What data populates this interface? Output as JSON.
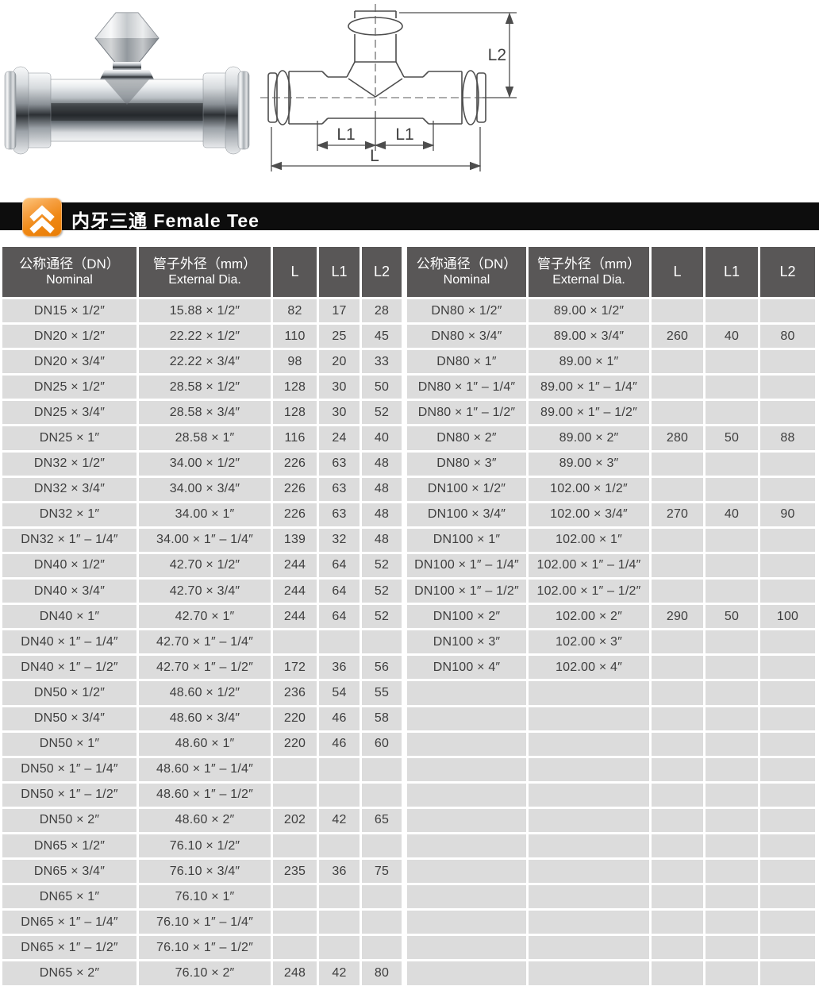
{
  "section": {
    "title": "内牙三通 Female Tee",
    "title_zh": "内牙三通",
    "title_en": "Female Tee"
  },
  "diagram": {
    "dim_l": "L",
    "dim_l1_left": "L1",
    "dim_l1_right": "L1",
    "dim_l2": "L2"
  },
  "table": {
    "headers": {
      "nominal_zh": "公称通径（DN）",
      "nominal_en": "Nominal",
      "dia_zh": "管子外径（mm）",
      "dia_en": "External Dia.",
      "l": "L",
      "l1": "L1",
      "l2": "L2"
    },
    "left_rows": [
      [
        "DN15 × 1/2″",
        "15.88 × 1/2″",
        "82",
        "17",
        "28"
      ],
      [
        "DN20 × 1/2″",
        "22.22 × 1/2″",
        "110",
        "25",
        "45"
      ],
      [
        "DN20 × 3/4″",
        "22.22 × 3/4″",
        "98",
        "20",
        "33"
      ],
      [
        "DN25 × 1/2″",
        "28.58 × 1/2″",
        "128",
        "30",
        "50"
      ],
      [
        "DN25 × 3/4″",
        "28.58 × 3/4″",
        "128",
        "30",
        "52"
      ],
      [
        "DN25 × 1″",
        "28.58 × 1″",
        "116",
        "24",
        "40"
      ],
      [
        "DN32 × 1/2″",
        "34.00 × 1/2″",
        "226",
        "63",
        "48"
      ],
      [
        "DN32 × 3/4″",
        "34.00 × 3/4″",
        "226",
        "63",
        "48"
      ],
      [
        "DN32 × 1″",
        "34.00 × 1″",
        "226",
        "63",
        "48"
      ],
      [
        "DN32 × 1″ – 1/4″",
        "34.00 × 1″ – 1/4″",
        "139",
        "32",
        "48"
      ],
      [
        "DN40 × 1/2″",
        "42.70 × 1/2″",
        "244",
        "64",
        "52"
      ],
      [
        "DN40 × 3/4″",
        "42.70 × 3/4″",
        "244",
        "64",
        "52"
      ],
      [
        "DN40 × 1″",
        "42.70 × 1″",
        "244",
        "64",
        "52"
      ],
      [
        "DN40 × 1″ – 1/4″",
        "42.70 × 1″ – 1/4″",
        "",
        "",
        ""
      ],
      [
        "DN40 × 1″ – 1/2″",
        "42.70 × 1″ – 1/2″",
        "172",
        "36",
        "56"
      ],
      [
        "DN50 × 1/2″",
        "48.60 × 1/2″",
        "236",
        "54",
        "55"
      ],
      [
        "DN50 × 3/4″",
        "48.60 × 3/4″",
        "220",
        "46",
        "58"
      ],
      [
        "DN50 × 1″",
        "48.60 × 1″",
        "220",
        "46",
        "60"
      ],
      [
        "DN50 × 1″ – 1/4″",
        "48.60 × 1″ – 1/4″",
        "",
        "",
        ""
      ],
      [
        "DN50 × 1″ – 1/2″",
        "48.60 × 1″ – 1/2″",
        "",
        "",
        ""
      ],
      [
        "DN50 × 2″",
        "48.60 × 2″",
        "202",
        "42",
        "65"
      ],
      [
        "DN65 × 1/2″",
        "76.10 × 1/2″",
        "",
        "",
        ""
      ],
      [
        "DN65 × 3/4″",
        "76.10 × 3/4″",
        "235",
        "36",
        "75"
      ],
      [
        "DN65 × 1″",
        "76.10 × 1″",
        "",
        "",
        ""
      ],
      [
        "DN65 × 1″ – 1/4″",
        "76.10 × 1″ – 1/4″",
        "",
        "",
        ""
      ],
      [
        "DN65 × 1″ – 1/2″",
        "76.10 × 1″ – 1/2″",
        "",
        "",
        ""
      ],
      [
        "DN65 × 2″",
        "76.10 × 2″",
        "248",
        "42",
        "80"
      ]
    ],
    "right_rows": [
      [
        "DN80 × 1/2″",
        "89.00 × 1/2″",
        "",
        "",
        ""
      ],
      [
        "DN80 × 3/4″",
        "89.00 × 3/4″",
        "260",
        "40",
        "80"
      ],
      [
        "DN80 × 1″",
        "89.00 × 1″",
        "",
        "",
        ""
      ],
      [
        "DN80 × 1″ – 1/4″",
        "89.00 × 1″ – 1/4″",
        "",
        "",
        ""
      ],
      [
        "DN80 × 1″ – 1/2″",
        "89.00 × 1″ – 1/2″",
        "",
        "",
        ""
      ],
      [
        "DN80 × 2″",
        "89.00 × 2″",
        "280",
        "50",
        "88"
      ],
      [
        "DN80 × 3″",
        "89.00 × 3″",
        "",
        "",
        ""
      ],
      [
        "DN100 × 1/2″",
        "102.00 × 1/2″",
        "",
        "",
        ""
      ],
      [
        "DN100 × 3/4″",
        "102.00 × 3/4″",
        "270",
        "40",
        "90"
      ],
      [
        "DN100 × 1″",
        "102.00 × 1″",
        "",
        "",
        ""
      ],
      [
        "DN100 × 1″ – 1/4″",
        "102.00 × 1″ – 1/4″",
        "",
        "",
        ""
      ],
      [
        "DN100 × 1″ – 1/2″",
        "102.00 × 1″ – 1/2″",
        "",
        "",
        ""
      ],
      [
        "DN100 × 2″",
        "102.00 × 2″",
        "290",
        "50",
        "100"
      ],
      [
        "DN100 × 3″",
        "102.00 × 3″",
        "",
        "",
        ""
      ],
      [
        "DN100 × 4″",
        "102.00 × 4″",
        "",
        "",
        ""
      ],
      [
        "",
        "",
        "",
        "",
        ""
      ],
      [
        "",
        "",
        "",
        "",
        ""
      ],
      [
        "",
        "",
        "",
        "",
        ""
      ],
      [
        "",
        "",
        "",
        "",
        ""
      ],
      [
        "",
        "",
        "",
        "",
        ""
      ],
      [
        "",
        "",
        "",
        "",
        ""
      ],
      [
        "",
        "",
        "",
        "",
        ""
      ],
      [
        "",
        "",
        "",
        "",
        ""
      ],
      [
        "",
        "",
        "",
        "",
        ""
      ],
      [
        "",
        "",
        "",
        "",
        ""
      ],
      [
        "",
        "",
        "",
        "",
        ""
      ],
      [
        "",
        "",
        "",
        "",
        ""
      ]
    ]
  },
  "colors": {
    "accent_orange": "#ee8410",
    "title_bar_black": "#0d0d0d",
    "header_cell_gray": "#595757",
    "data_cell_gray": "#dcdcdc"
  }
}
